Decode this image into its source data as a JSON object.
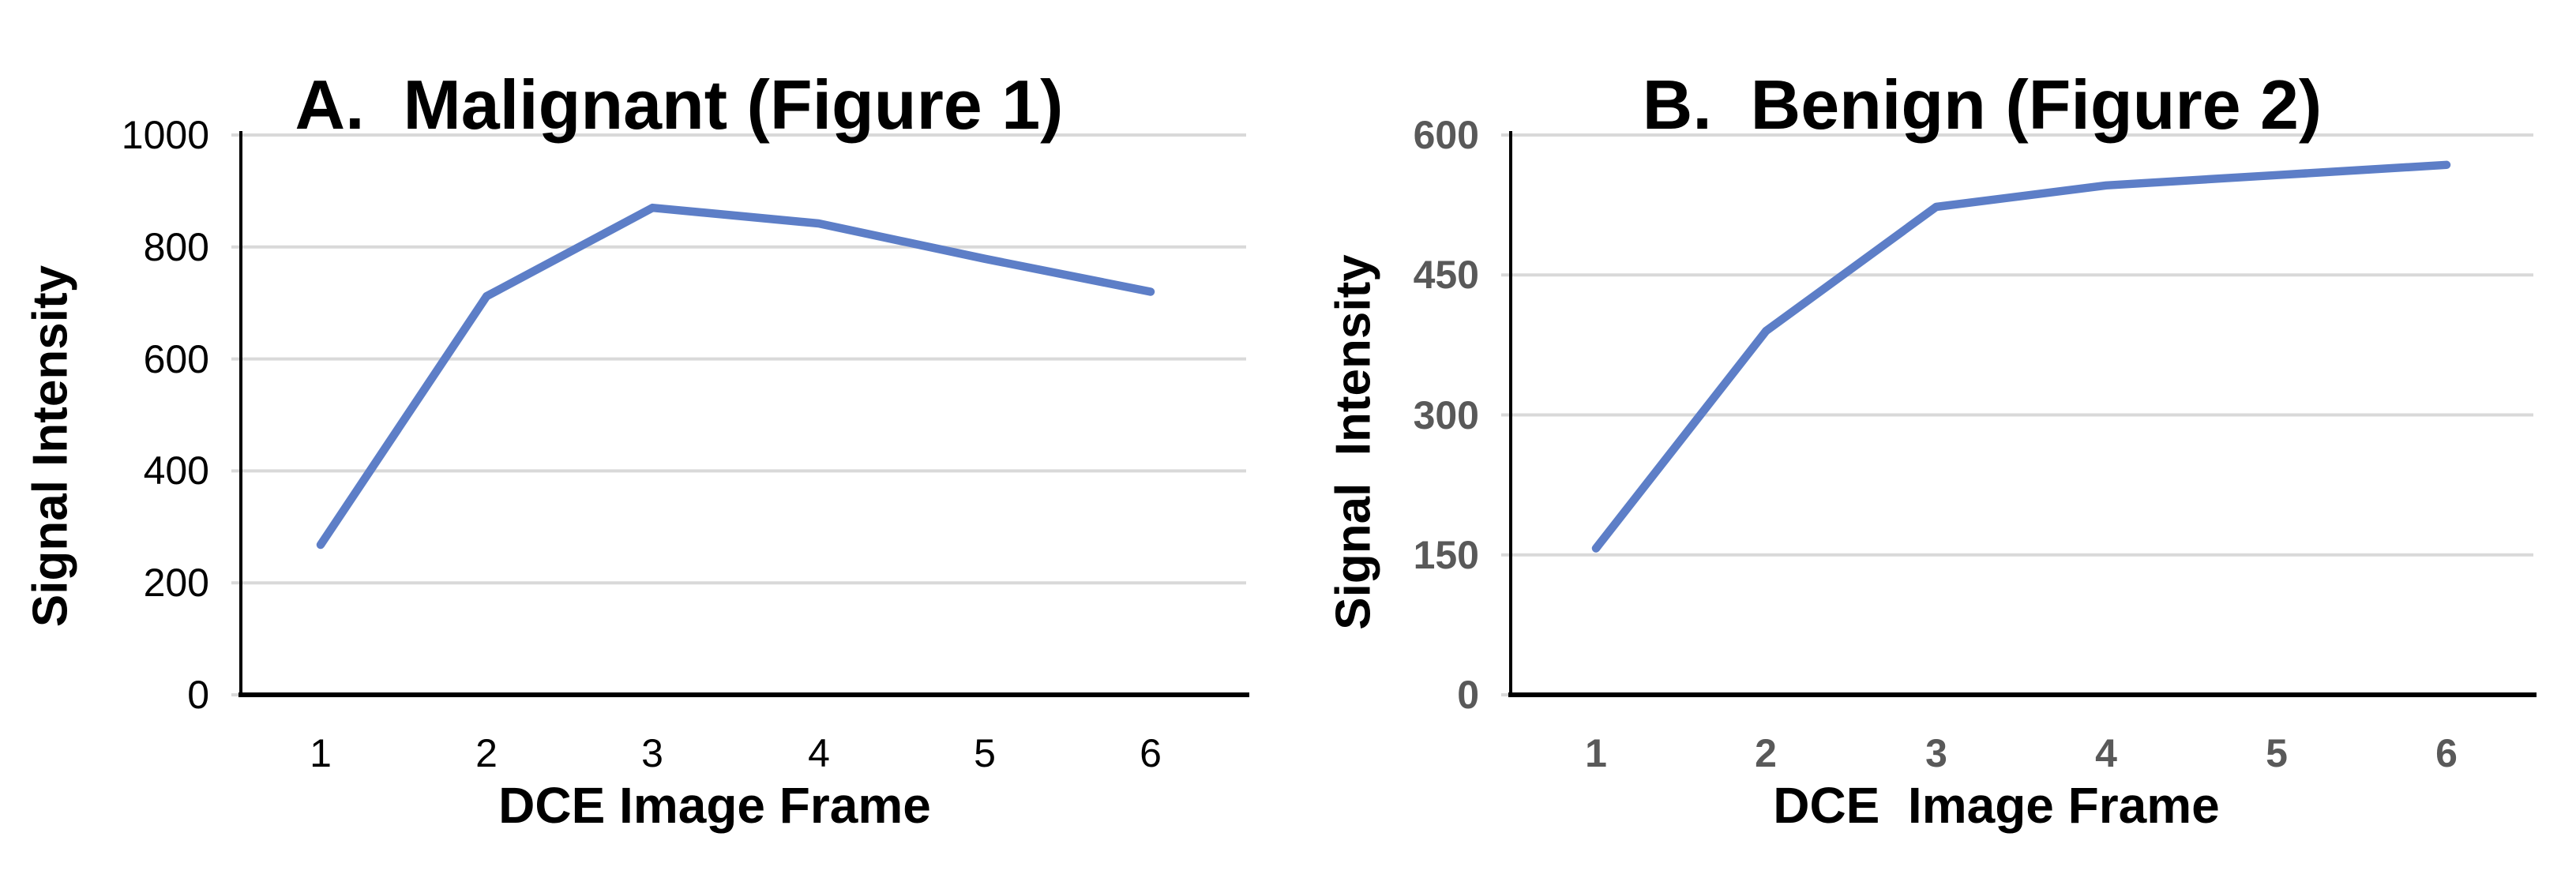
{
  "figure": {
    "background": "#FFFFFF"
  },
  "colors": {
    "line": "#5D7EC7",
    "grid": "#D9D9D9",
    "axis": "#000000",
    "title_text": "#000000",
    "tick_labels_left_chart": "#000000",
    "tick_labels_right_chart": "#595959"
  },
  "chart_data": [
    {
      "type": "line",
      "panel": "A",
      "title": "A.  Malignant (Figure 1)",
      "ylabel": "Signal Intensity",
      "xlabel": "DCE Image Frame",
      "x": [
        1,
        2,
        3,
        4,
        5,
        6
      ],
      "xticks": [
        "1",
        "2",
        "3",
        "4",
        "5",
        "6"
      ],
      "values": [
        268,
        712,
        870,
        842,
        779,
        720
      ],
      "ylim": [
        0,
        1000
      ],
      "yticks": [
        0,
        200,
        400,
        600,
        800,
        1000
      ],
      "grid": "horizontal",
      "legend": "none"
    },
    {
      "type": "line",
      "panel": "B",
      "title": "B.  Benign (Figure 2)",
      "ylabel": "Signal  Intensity",
      "xlabel": "DCE  Image Frame",
      "x": [
        1,
        2,
        3,
        4,
        5,
        6
      ],
      "xticks": [
        "1",
        "2",
        "3",
        "4",
        "5",
        "6"
      ],
      "values": [
        157,
        390,
        523,
        546,
        557,
        568
      ],
      "ylim": [
        0,
        600
      ],
      "yticks": [
        0,
        150,
        300,
        450,
        600
      ],
      "grid": "horizontal",
      "legend": "none"
    }
  ]
}
